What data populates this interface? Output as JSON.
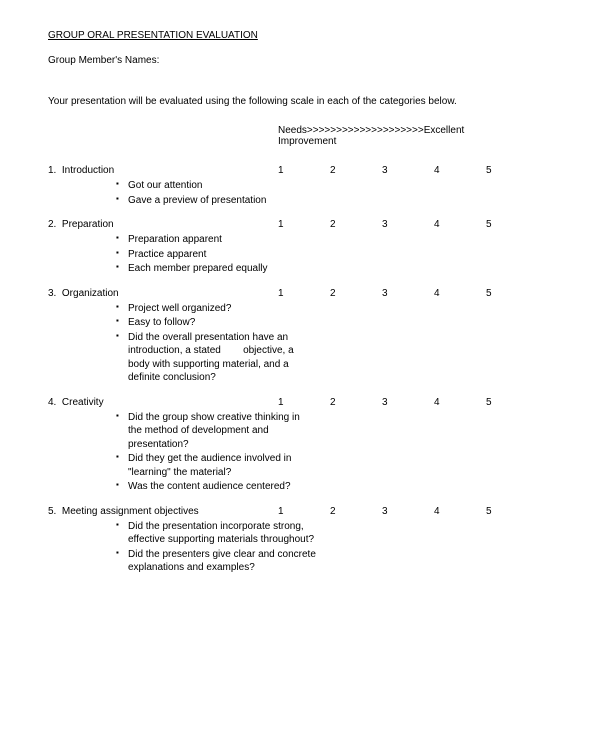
{
  "title": "GROUP ORAL PRESENTATION EVALUATION",
  "members_label": "Group Member's Names:",
  "instructions": "Your presentation will be evaluated using the following scale in each of the categories below.",
  "scale": {
    "left": "Needs",
    "arrows": ">>>>>>>>>>>>>>>>>>>>",
    "right": "Excellent",
    "left2": "Improvement",
    "values": [
      "1",
      "2",
      "3",
      "4",
      "5"
    ]
  },
  "sections": [
    {
      "num": "1.",
      "title": "Introduction",
      "bullets": [
        "Got our attention",
        "Gave a preview of presentation"
      ]
    },
    {
      "num": "2.",
      "title": "Preparation",
      "bullets": [
        "Preparation apparent",
        "Practice apparent",
        "Each member prepared equally"
      ]
    },
    {
      "num": "3.",
      "title": "Organization",
      "bullets": [
        "Project well organized?",
        "Easy to follow?",
        "Did the overall presentation have an introduction, a stated        objective, a body with supporting material, and a definite conclusion?"
      ]
    },
    {
      "num": "4.",
      "title": "Creativity",
      "bullets": [
        "Did the group show creative thinking in the method of development and presentation?",
        "Did they get the audience involved in \"learning\" the material?",
        "Was the content audience centered?"
      ]
    },
    {
      "num": "5.",
      "title": "Meeting assignment objectives",
      "bullets": [
        "Did the presentation incorporate strong, effective supporting materials throughout?",
        "Did the presenters give clear and concrete explanations and examples?"
      ]
    }
  ]
}
